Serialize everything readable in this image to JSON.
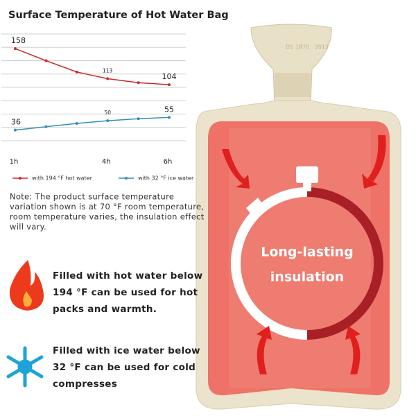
{
  "chart_data": {
    "type": "line",
    "title": "Surface Temperature of Hot Water Bag",
    "x": [
      1,
      2,
      3,
      4,
      5,
      6
    ],
    "xticks": [
      {
        "value": 1,
        "label": "1h"
      },
      {
        "value": 4,
        "label": "4h"
      },
      {
        "value": 6,
        "label": "6h"
      }
    ],
    "xlim": [
      1,
      6
    ],
    "ylim": [
      20,
      180
    ],
    "yticks": [
      20,
      40,
      60,
      80,
      100,
      120,
      140,
      160,
      180
    ],
    "grid": true,
    "series": [
      {
        "name": "with 194 °F hot water",
        "color": "#cc2a2a",
        "values": [
          158,
          140,
          123,
          113,
          107,
          104
        ],
        "value_labels": [
          "158",
          null,
          null,
          "113",
          null,
          "104"
        ]
      },
      {
        "name": "with 32 °F ice water",
        "color": "#2f8fb8",
        "values": [
          36,
          41,
          46,
          50,
          53,
          55
        ],
        "value_labels": [
          "36",
          null,
          null,
          "50",
          null,
          "55"
        ]
      }
    ]
  },
  "note": [
    "Note: The product surface temperature",
    "variation shown is at 70 °F room temperature,",
    "room temperature varies, the insulation effect",
    "will vary."
  ],
  "hot": [
    "Filled with hot water below",
    "194 °F can be used for hot",
    "packs and warmth."
  ],
  "cold": [
    "Filled with ice water below",
    "32 °F can be used for cold",
    "compresses"
  ],
  "badge": [
    "Long-lasting",
    "insulation"
  ],
  "stamp": "DS 1970 · 2012"
}
